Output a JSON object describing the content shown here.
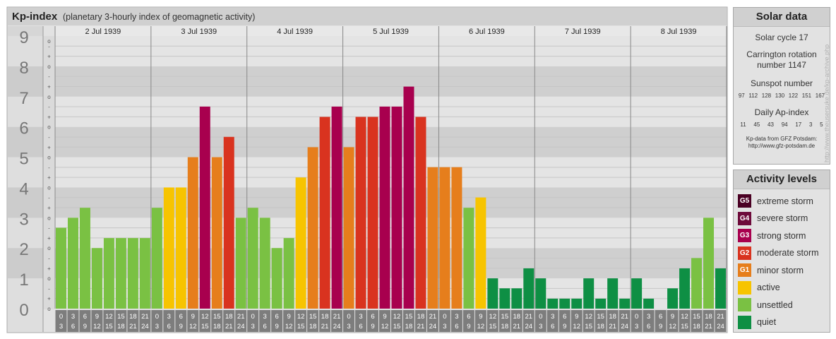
{
  "title": "Kp-index",
  "subtitle": "(planetary 3-hourly index of geomagnetic activity)",
  "chart_data": {
    "type": "bar",
    "days": [
      "2 Jul 1939",
      "3 Jul 1939",
      "4 Jul 1939",
      "5 Jul 1939",
      "6 Jul 1939",
      "7 Jul 1939",
      "8 Jul 1939"
    ],
    "interval_labels": [
      [
        "0",
        "3"
      ],
      [
        "3",
        "6"
      ],
      [
        "6",
        "9"
      ],
      [
        "9",
        "12"
      ],
      [
        "12",
        "15"
      ],
      [
        "15",
        "18"
      ],
      [
        "18",
        "21"
      ],
      [
        "21",
        "24"
      ]
    ],
    "y_ticks": [
      "0",
      "1",
      "2",
      "3",
      "4",
      "5",
      "6",
      "7",
      "8",
      "9"
    ],
    "sub_ticks": [
      "o",
      "+",
      "-"
    ],
    "ylim": [
      0,
      9
    ],
    "values": [
      2.67,
      3.0,
      3.33,
      2.0,
      2.33,
      2.33,
      2.33,
      2.33,
      3.33,
      4.0,
      4.0,
      5.0,
      6.67,
      5.0,
      5.67,
      3.0,
      3.33,
      3.0,
      2.0,
      2.33,
      4.33,
      5.33,
      6.33,
      6.67,
      5.33,
      6.33,
      6.33,
      6.67,
      6.67,
      7.33,
      6.33,
      4.67,
      4.67,
      4.67,
      3.33,
      3.67,
      1.0,
      0.67,
      0.67,
      1.33,
      1.0,
      0.33,
      0.33,
      0.33,
      1.0,
      0.33,
      1.0,
      0.33,
      1.0,
      0.33,
      0.0,
      0.67,
      1.33,
      1.67,
      3.0,
      1.33
    ],
    "grid": true
  },
  "solar": {
    "title": "Solar data",
    "cycle": "Solar cycle 17",
    "carrington_line1": "Carrington rotation",
    "carrington_line2": "number 1147",
    "sunspot_label": "Sunspot number",
    "sunspot_values": [
      "97",
      "112",
      "128",
      "130",
      "122",
      "151",
      "167"
    ],
    "ap_label": "Daily Ap-index",
    "ap_values": [
      "11",
      "45",
      "43",
      "94",
      "17",
      "3",
      "5"
    ],
    "credit_line1": "Kp-data from GFZ Potsdam:",
    "credit_line2": "http://www.gfz-potsdam.de"
  },
  "activity": {
    "title": "Activity levels",
    "levels": [
      {
        "badge": "G5",
        "label": "extreme storm",
        "color": "#4a0023"
      },
      {
        "badge": "G4",
        "label": "severe storm",
        "color": "#6d0a3a"
      },
      {
        "badge": "G3",
        "label": "strong storm",
        "color": "#a8004e"
      },
      {
        "badge": "G2",
        "label": "moderate storm",
        "color": "#d9331f"
      },
      {
        "badge": "G1",
        "label": "minor storm",
        "color": "#e67e1c"
      },
      {
        "badge": "",
        "label": "active",
        "color": "#f7c400"
      },
      {
        "badge": "",
        "label": "unsettled",
        "color": "#7ac143"
      },
      {
        "badge": "",
        "label": "quiet",
        "color": "#0e8f44"
      }
    ]
  },
  "side_credit": "http://www.theusersuke.de/kp-archive.php",
  "colors": {
    "quiet": "#0e8f44",
    "unsettled": "#7ac143",
    "active": "#f7c400",
    "G1": "#e67e1c",
    "G2": "#d9331f",
    "G3": "#a8004e",
    "G4": "#6d0a3a",
    "G5": "#4a0023"
  }
}
